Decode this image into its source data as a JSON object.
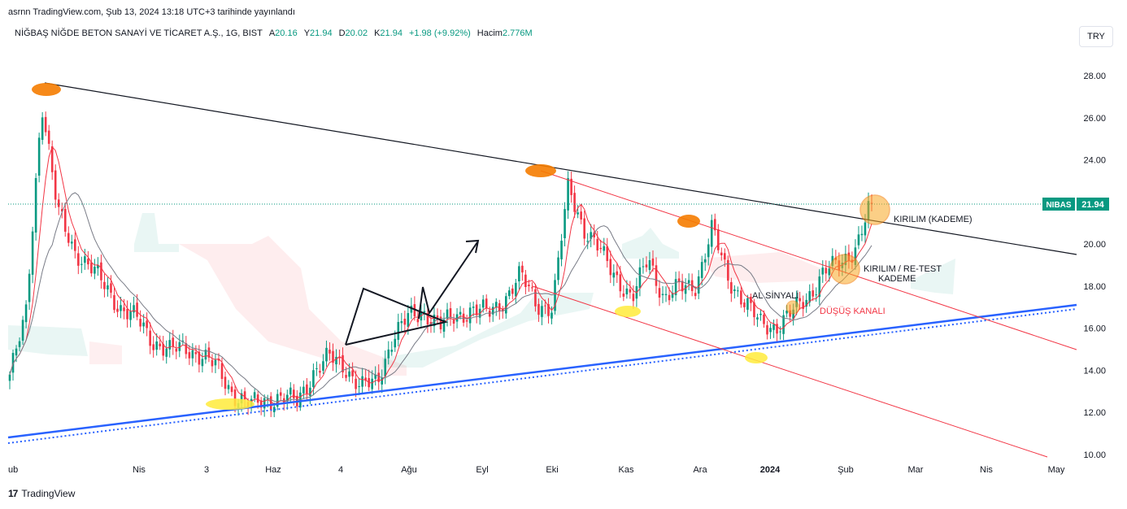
{
  "header": {
    "published": "asrnn TradingView.com, Şub 13, 2024 13:18 UTC+3 tarihinde yayınlandı",
    "symbol_title": "NİĞBAŞ NİĞDE BETON SANAYİ VE TİCARET A.Ş., 1G, BIST",
    "open_label": "A",
    "open_value": "20.16",
    "high_label": "Y",
    "high_value": "21.94",
    "low_label": "D",
    "low_value": "20.02",
    "close_label": "K",
    "close_value": "21.94",
    "change": "+1.98 (+9.92%)",
    "volume_label": "Hacim",
    "volume_value": "2.776M",
    "currency_button": "TRY"
  },
  "footer": {
    "brand": "TradingView"
  },
  "colors": {
    "up": "#089981",
    "down": "#f23645",
    "support": "#2962ff",
    "channel": "#f23645",
    "marker": "#f57c00",
    "highlight": "#ffeb3b"
  },
  "chart_data": {
    "type": "candlestick",
    "ylim": [
      10,
      29
    ],
    "yticks": [
      "28.00",
      "26.00",
      "24.00",
      "22.00",
      "20.00",
      "18.00",
      "16.00",
      "14.00",
      "12.00",
      "10.00"
    ],
    "x_labels": [
      "ub",
      "Nis",
      "3",
      "Haz",
      "4",
      "Ağu",
      "Eyl",
      "Eki",
      "Kas",
      "Ara",
      "2024",
      "Şub",
      "Mar",
      "Nis",
      "May"
    ],
    "price_tag": {
      "symbol": "NIBAS",
      "value": 21.94
    },
    "annotations": [
      "KIRILIM (KADEME)",
      "KIRILIM / RE-TEST",
      "KADEME",
      "AL SİNYALİ",
      "DÜŞÜŞ KANALI"
    ],
    "series": [
      {
        "name": "close",
        "points": [
          [
            "2023-01-30",
            13.8
          ],
          [
            "2023-02-06",
            16.5
          ],
          [
            "2023-02-13",
            26.8
          ],
          [
            "2023-02-20",
            21.5
          ],
          [
            "2023-02-27",
            19.8
          ],
          [
            "2023-03-06",
            18.9
          ],
          [
            "2023-03-13",
            18.0
          ],
          [
            "2023-03-20",
            16.9
          ],
          [
            "2023-03-27",
            16.4
          ],
          [
            "2023-04-03",
            15.4
          ],
          [
            "2023-04-10",
            14.9
          ],
          [
            "2023-04-17",
            15.1
          ],
          [
            "2023-04-24",
            14.7
          ],
          [
            "2023-05-01",
            14.1
          ],
          [
            "2023-05-08",
            12.9
          ],
          [
            "2023-05-15",
            12.3
          ],
          [
            "2023-05-22",
            12.6
          ],
          [
            "2023-05-29",
            12.7
          ],
          [
            "2023-06-05",
            12.5
          ],
          [
            "2023-06-12",
            13.9
          ],
          [
            "2023-06-19",
            14.6
          ],
          [
            "2023-06-26",
            14.2
          ],
          [
            "2023-07-03",
            13.2
          ],
          [
            "2023-07-10",
            13.4
          ],
          [
            "2023-07-17",
            15.6
          ],
          [
            "2023-07-24",
            16.5
          ],
          [
            "2023-07-31",
            16.8
          ],
          [
            "2023-08-07",
            16.1
          ],
          [
            "2023-08-14",
            16.6
          ],
          [
            "2023-08-21",
            16.9
          ],
          [
            "2023-08-28",
            16.7
          ],
          [
            "2023-09-04",
            17.4
          ],
          [
            "2023-09-11",
            18.5
          ],
          [
            "2023-09-18",
            17.2
          ],
          [
            "2023-09-25",
            16.9
          ],
          [
            "2023-10-02",
            22.8
          ],
          [
            "2023-10-09",
            20.7
          ],
          [
            "2023-10-16",
            19.6
          ],
          [
            "2023-10-23",
            18.5
          ],
          [
            "2023-10-30",
            17.3
          ],
          [
            "2023-11-06",
            19.4
          ],
          [
            "2023-11-13",
            17.4
          ],
          [
            "2023-11-20",
            17.9
          ],
          [
            "2023-11-27",
            18.1
          ],
          [
            "2023-12-04",
            20.7
          ],
          [
            "2023-12-11",
            18.4
          ],
          [
            "2023-12-18",
            17.3
          ],
          [
            "2023-12-25",
            16.2
          ],
          [
            "2024-01-01",
            16.1
          ],
          [
            "2024-01-08",
            16.7
          ],
          [
            "2024-01-15",
            17.5
          ],
          [
            "2024-01-22",
            18.7
          ],
          [
            "2024-01-29",
            19.0
          ],
          [
            "2024-02-05",
            19.9
          ],
          [
            "2024-02-12",
            21.94
          ]
        ]
      }
    ]
  }
}
